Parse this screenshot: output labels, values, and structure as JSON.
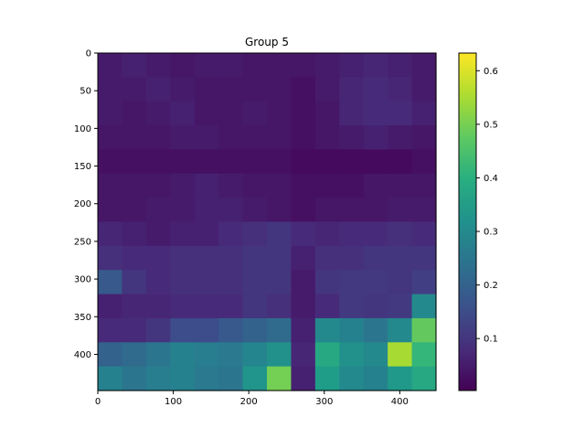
{
  "chart_data": {
    "type": "heatmap",
    "title": "Group 5",
    "xlabel": "",
    "ylabel": "",
    "colormap": "viridis",
    "xlim": [
      0,
      448
    ],
    "ylim": [
      448,
      0
    ],
    "x_ticks": [
      0,
      100,
      200,
      300,
      400
    ],
    "y_ticks": [
      0,
      50,
      100,
      150,
      200,
      250,
      300,
      350,
      400
    ],
    "x_tick_labels": [
      "0",
      "100",
      "200",
      "300",
      "400"
    ],
    "y_tick_labels": [
      "0",
      "50",
      "100",
      "150",
      "200",
      "250",
      "300",
      "350",
      "400"
    ],
    "colorbar": {
      "range": [
        0.003,
        0.633
      ],
      "ticks": [
        0.1,
        0.2,
        0.3,
        0.4,
        0.5,
        0.6
      ],
      "tick_labels": [
        "0.1",
        "0.2",
        "0.3",
        "0.4",
        "0.5",
        "0.6"
      ]
    },
    "grid_rows": 14,
    "grid_cols": 14,
    "values": [
      [
        0.05,
        0.06,
        0.05,
        0.04,
        0.05,
        0.05,
        0.04,
        0.04,
        0.04,
        0.05,
        0.06,
        0.07,
        0.06,
        0.05
      ],
      [
        0.05,
        0.05,
        0.06,
        0.05,
        0.04,
        0.04,
        0.04,
        0.04,
        0.03,
        0.05,
        0.07,
        0.08,
        0.07,
        0.05
      ],
      [
        0.05,
        0.04,
        0.05,
        0.06,
        0.04,
        0.04,
        0.05,
        0.04,
        0.03,
        0.04,
        0.07,
        0.08,
        0.08,
        0.06
      ],
      [
        0.04,
        0.04,
        0.04,
        0.05,
        0.05,
        0.04,
        0.04,
        0.04,
        0.03,
        0.04,
        0.05,
        0.06,
        0.05,
        0.04
      ],
      [
        0.03,
        0.03,
        0.03,
        0.03,
        0.03,
        0.03,
        0.03,
        0.03,
        0.02,
        0.02,
        0.02,
        0.02,
        0.02,
        0.03
      ],
      [
        0.04,
        0.04,
        0.04,
        0.05,
        0.06,
        0.05,
        0.04,
        0.04,
        0.03,
        0.03,
        0.03,
        0.04,
        0.04,
        0.04
      ],
      [
        0.04,
        0.04,
        0.05,
        0.05,
        0.06,
        0.06,
        0.05,
        0.04,
        0.03,
        0.04,
        0.04,
        0.04,
        0.05,
        0.05
      ],
      [
        0.07,
        0.06,
        0.05,
        0.06,
        0.06,
        0.08,
        0.09,
        0.1,
        0.08,
        0.07,
        0.08,
        0.08,
        0.09,
        0.08
      ],
      [
        0.09,
        0.08,
        0.08,
        0.09,
        0.09,
        0.09,
        0.1,
        0.1,
        0.06,
        0.09,
        0.09,
        0.1,
        0.1,
        0.1
      ],
      [
        0.18,
        0.1,
        0.08,
        0.09,
        0.09,
        0.09,
        0.1,
        0.1,
        0.05,
        0.1,
        0.11,
        0.11,
        0.1,
        0.12
      ],
      [
        0.06,
        0.07,
        0.07,
        0.08,
        0.08,
        0.08,
        0.1,
        0.09,
        0.05,
        0.08,
        0.11,
        0.1,
        0.11,
        0.3
      ],
      [
        0.08,
        0.08,
        0.1,
        0.15,
        0.15,
        0.18,
        0.2,
        0.22,
        0.06,
        0.3,
        0.28,
        0.25,
        0.3,
        0.48
      ],
      [
        0.2,
        0.22,
        0.25,
        0.28,
        0.27,
        0.26,
        0.29,
        0.32,
        0.07,
        0.38,
        0.32,
        0.3,
        0.55,
        0.42
      ],
      [
        0.28,
        0.25,
        0.27,
        0.28,
        0.26,
        0.25,
        0.33,
        0.5,
        0.06,
        0.35,
        0.3,
        0.28,
        0.34,
        0.38
      ]
    ]
  }
}
